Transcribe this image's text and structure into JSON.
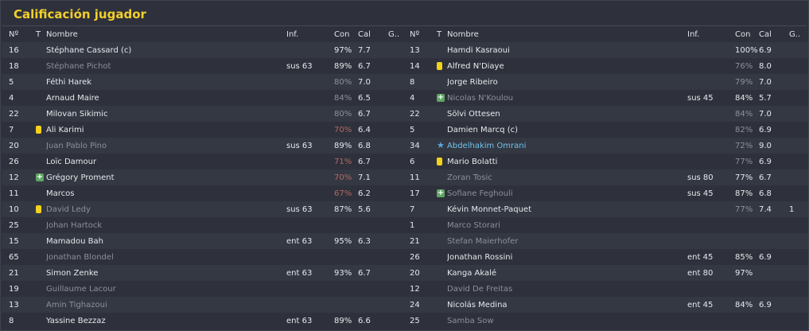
{
  "title": "Calificación jugador",
  "columns": {
    "num": "Nº",
    "t": "T",
    "name": "Nombre",
    "inf": "Inf.",
    "con": "Con",
    "cal": "Cal",
    "g": "G.."
  },
  "left": [
    {
      "num": "16",
      "icon": "",
      "name": "Stéphane Cassard (c)",
      "inf": "",
      "con": "97%",
      "cal": "7.7",
      "g": "",
      "muted": false,
      "con_style": "normal"
    },
    {
      "num": "18",
      "icon": "",
      "name": "Stéphane Pichot",
      "inf": "sus 63",
      "con": "89%",
      "cal": "6.7",
      "g": "",
      "muted": true,
      "con_style": "normal"
    },
    {
      "num": "5",
      "icon": "",
      "name": "Féthi Harek",
      "inf": "",
      "con": "80%",
      "cal": "7.0",
      "g": "",
      "muted": false,
      "con_style": "dim"
    },
    {
      "num": "4",
      "icon": "",
      "name": "Arnaud Maire",
      "inf": "",
      "con": "84%",
      "cal": "6.5",
      "g": "",
      "muted": false,
      "con_style": "dim"
    },
    {
      "num": "22",
      "icon": "",
      "name": "Milovan Sikimic",
      "inf": "",
      "con": "80%",
      "cal": "6.7",
      "g": "",
      "muted": false,
      "con_style": "dim"
    },
    {
      "num": "7",
      "icon": "yellow-card",
      "name": "Ali Karimi",
      "inf": "",
      "con": "70%",
      "cal": "6.4",
      "g": "",
      "muted": false,
      "con_style": "red"
    },
    {
      "num": "20",
      "icon": "",
      "name": "Juan Pablo Pino",
      "inf": "sus 63",
      "con": "89%",
      "cal": "6.8",
      "g": "",
      "muted": true,
      "con_style": "normal"
    },
    {
      "num": "26",
      "icon": "",
      "name": "Loïc Damour",
      "inf": "",
      "con": "71%",
      "cal": "6.7",
      "g": "",
      "muted": false,
      "con_style": "red"
    },
    {
      "num": "12",
      "icon": "plus",
      "name": "Grégory Proment",
      "inf": "",
      "con": "70%",
      "cal": "7.1",
      "g": "",
      "muted": false,
      "con_style": "red"
    },
    {
      "num": "11",
      "icon": "",
      "name": "Marcos",
      "inf": "",
      "con": "67%",
      "cal": "6.2",
      "g": "",
      "muted": false,
      "con_style": "red"
    },
    {
      "num": "10",
      "icon": "yellow-card",
      "name": "David Ledy",
      "inf": "sus 63",
      "con": "87%",
      "cal": "5.6",
      "g": "",
      "muted": true,
      "con_style": "normal"
    },
    {
      "num": "25",
      "icon": "",
      "name": "Johan Hartock",
      "inf": "",
      "con": "",
      "cal": "",
      "g": "",
      "muted": true,
      "con_style": "normal"
    },
    {
      "num": "15",
      "icon": "",
      "name": "Mamadou Bah",
      "inf": "ent 63",
      "con": "95%",
      "cal": "6.3",
      "g": "",
      "muted": false,
      "con_style": "normal"
    },
    {
      "num": "65",
      "icon": "",
      "name": "Jonathan Blondel",
      "inf": "",
      "con": "",
      "cal": "",
      "g": "",
      "muted": true,
      "con_style": "normal"
    },
    {
      "num": "21",
      "icon": "",
      "name": "Simon Zenke",
      "inf": "ent 63",
      "con": "93%",
      "cal": "6.7",
      "g": "",
      "muted": false,
      "con_style": "normal"
    },
    {
      "num": "19",
      "icon": "",
      "name": "Guillaume Lacour",
      "inf": "",
      "con": "",
      "cal": "",
      "g": "",
      "muted": true,
      "con_style": "normal"
    },
    {
      "num": "13",
      "icon": "",
      "name": "Amin Tighazoui",
      "inf": "",
      "con": "",
      "cal": "",
      "g": "",
      "muted": true,
      "con_style": "normal"
    },
    {
      "num": "8",
      "icon": "",
      "name": "Yassine Bezzaz",
      "inf": "ent 63",
      "con": "89%",
      "cal": "6.6",
      "g": "",
      "muted": false,
      "con_style": "normal"
    }
  ],
  "right": [
    {
      "num": "13",
      "icon": "",
      "name": "Hamdi Kasraoui",
      "inf": "",
      "con": "100%",
      "cal": "6.9",
      "g": "",
      "muted": false,
      "con_style": "normal"
    },
    {
      "num": "14",
      "icon": "yellow-card",
      "name": "Alfred N'Diaye",
      "inf": "",
      "con": "76%",
      "cal": "8.0",
      "g": "",
      "muted": false,
      "con_style": "dim"
    },
    {
      "num": "8",
      "icon": "",
      "name": "Jorge Ribeiro",
      "inf": "",
      "con": "79%",
      "cal": "7.0",
      "g": "",
      "muted": false,
      "con_style": "dim"
    },
    {
      "num": "4",
      "icon": "plus",
      "name": "Nicolas N'Koulou",
      "inf": "sus 45",
      "con": "84%",
      "cal": "5.7",
      "g": "",
      "muted": true,
      "con_style": "normal"
    },
    {
      "num": "22",
      "icon": "",
      "name": "Sölvi Ottesen",
      "inf": "",
      "con": "84%",
      "cal": "7.0",
      "g": "",
      "muted": false,
      "con_style": "dim"
    },
    {
      "num": "5",
      "icon": "",
      "name": "Damien Marcq (c)",
      "inf": "",
      "con": "82%",
      "cal": "6.9",
      "g": "",
      "muted": false,
      "con_style": "dim"
    },
    {
      "num": "34",
      "icon": "star",
      "name": "Abdelhakim Omrani",
      "inf": "",
      "con": "72%",
      "cal": "9.0",
      "g": "",
      "muted": false,
      "highlight": true,
      "con_style": "dim"
    },
    {
      "num": "6",
      "icon": "yellow-card",
      "name": "Mario Bolatti",
      "inf": "",
      "con": "77%",
      "cal": "6.9",
      "g": "",
      "muted": false,
      "con_style": "dim"
    },
    {
      "num": "11",
      "icon": "",
      "name": "Zoran Tosic",
      "inf": "sus 80",
      "con": "77%",
      "cal": "6.7",
      "g": "",
      "muted": true,
      "con_style": "normal"
    },
    {
      "num": "17",
      "icon": "plus",
      "name": "Sofiane Feghouli",
      "inf": "sus 45",
      "con": "87%",
      "cal": "6.8",
      "g": "",
      "muted": true,
      "con_style": "normal"
    },
    {
      "num": "7",
      "icon": "",
      "name": "Kévin Monnet-Paquet",
      "inf": "",
      "con": "77%",
      "cal": "7.4",
      "g": "1",
      "muted": false,
      "con_style": "dim"
    },
    {
      "num": "1",
      "icon": "",
      "name": "Marco Storari",
      "inf": "",
      "con": "",
      "cal": "",
      "g": "",
      "muted": true,
      "con_style": "normal"
    },
    {
      "num": "21",
      "icon": "",
      "name": "Stefan Maierhofer",
      "inf": "",
      "con": "",
      "cal": "",
      "g": "",
      "muted": true,
      "con_style": "normal"
    },
    {
      "num": "26",
      "icon": "",
      "name": "Jonathan Rossini",
      "inf": "ent 45",
      "con": "85%",
      "cal": "6.9",
      "g": "",
      "muted": false,
      "con_style": "normal"
    },
    {
      "num": "20",
      "icon": "",
      "name": "Kanga Akalé",
      "inf": "ent 80",
      "con": "97%",
      "cal": "",
      "g": "",
      "muted": false,
      "con_style": "normal"
    },
    {
      "num": "12",
      "icon": "",
      "name": "David De Freitas",
      "inf": "",
      "con": "",
      "cal": "",
      "g": "",
      "muted": true,
      "con_style": "normal"
    },
    {
      "num": "24",
      "icon": "",
      "name": "Nicolás Medina",
      "inf": "ent 45",
      "con": "84%",
      "cal": "6.9",
      "g": "",
      "muted": false,
      "con_style": "normal"
    },
    {
      "num": "25",
      "icon": "",
      "name": "Samba Sow",
      "inf": "",
      "con": "",
      "cal": "",
      "g": "",
      "muted": true,
      "con_style": "normal"
    }
  ]
}
